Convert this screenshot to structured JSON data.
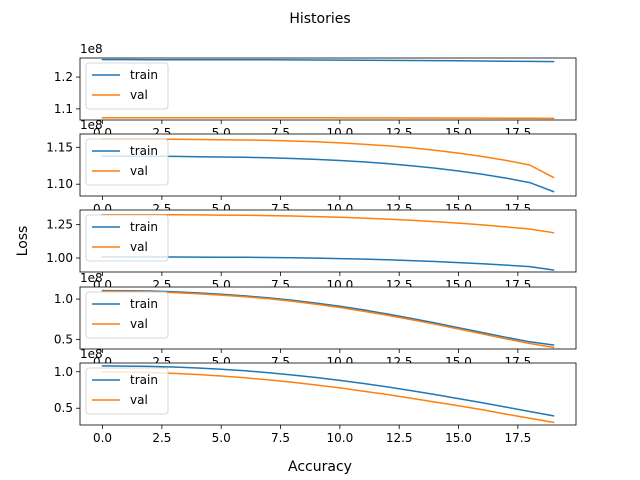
{
  "chart_data": {
    "type": "line",
    "title": "Histories",
    "xlabel": "Accuracy",
    "ylabel": "Loss",
    "colors": {
      "train": "#1f77b4",
      "val": "#ff7f0e"
    },
    "legend": [
      "train",
      "val"
    ],
    "legend_position": "upper left",
    "grid": false,
    "x": [
      0,
      1,
      2,
      3,
      4,
      5,
      6,
      7,
      8,
      9,
      10,
      11,
      12,
      13,
      14,
      15,
      16,
      17,
      18,
      19
    ],
    "x_ticks": [
      0,
      2.5,
      5,
      7.5,
      10,
      12.5,
      15,
      17.5
    ],
    "x_tick_labels": [
      "0.0",
      "2.5",
      "5.0",
      "7.5",
      "10.0",
      "12.5",
      "15.0",
      "17.5"
    ],
    "xlim": [
      -0.95,
      19.95
    ],
    "subplots": [
      {
        "offset_text": "1e8",
        "ylim": [
          1.065,
          1.26
        ],
        "yticks": [
          1.1,
          1.2
        ],
        "ytick_labels": [
          "1.1",
          "1.2"
        ],
        "series": [
          {
            "name": "train",
            "values": [
              1.255,
              1.2549,
              1.2548,
              1.2547,
              1.2546,
              1.2545,
              1.2544,
              1.2542,
              1.254,
              1.2537,
              1.2534,
              1.253,
              1.2526,
              1.2522,
              1.2517,
              1.2512,
              1.2506,
              1.25,
              1.2493,
              1.2486
            ]
          },
          {
            "name": "val",
            "values": [
              1.072,
              1.072,
              1.072,
              1.072,
              1.072,
              1.072,
              1.072,
              1.0719,
              1.0719,
              1.0718,
              1.0717,
              1.0716,
              1.0715,
              1.0714,
              1.0713,
              1.0711,
              1.0709,
              1.0707,
              1.0704,
              1.07
            ]
          }
        ]
      },
      {
        "offset_text": "1e8",
        "ylim": [
          1.084,
          1.168
        ],
        "yticks": [
          1.1,
          1.15
        ],
        "ytick_labels": [
          "1.10",
          "1.15"
        ],
        "series": [
          {
            "name": "train",
            "values": [
              1.138,
              1.1379,
              1.1378,
              1.1376,
              1.1373,
              1.1369,
              1.1364,
              1.1357,
              1.1348,
              1.1336,
              1.1321,
              1.1302,
              1.1279,
              1.1251,
              1.1218,
              1.1179,
              1.1134,
              1.1082,
              1.1022,
              1.09
            ]
          },
          {
            "name": "val",
            "values": [
              1.161,
              1.161,
              1.1609,
              1.1608,
              1.1606,
              1.1603,
              1.1599,
              1.1593,
              1.1585,
              1.1574,
              1.156,
              1.1542,
              1.152,
              1.1493,
              1.146,
              1.1421,
              1.1375,
              1.1322,
              1.126,
              1.109
            ]
          }
        ]
      },
      {
        "offset_text": "",
        "ylim": [
          0.895,
          1.36
        ],
        "yticks": [
          1.0,
          1.25
        ],
        "ytick_labels": [
          "1.00",
          "1.25"
        ],
        "series": [
          {
            "name": "train",
            "values": [
              1.008,
              1.0079,
              1.0077,
              1.0074,
              1.007,
              1.0063,
              1.0052,
              1.0037,
              1.0016,
              0.999,
              0.9956,
              0.9914,
              0.9863,
              0.9804,
              0.9735,
              0.9656,
              0.9567,
              0.9467,
              0.9356,
              0.91
            ]
          },
          {
            "name": "val",
            "values": [
              1.325,
              1.3249,
              1.3246,
              1.3241,
              1.3233,
              1.3221,
              1.3204,
              1.318,
              1.3149,
              1.3108,
              1.3057,
              1.2994,
              1.2919,
              1.2831,
              1.273,
              1.2614,
              1.2483,
              1.2336,
              1.2173,
              1.19
            ]
          }
        ]
      },
      {
        "offset_text": "1e8",
        "ylim": [
          0.38,
          1.15
        ],
        "yticks": [
          0.5,
          1.0
        ],
        "ytick_labels": [
          "0.5",
          "1.0"
        ],
        "series": [
          {
            "name": "train",
            "values": [
              1.105,
              1.104,
              1.1,
              1.09,
              1.077,
              1.06,
              1.04,
              1.015,
              0.985,
              0.95,
              0.91,
              0.865,
              0.815,
              0.76,
              0.705,
              0.645,
              0.585,
              0.525,
              0.47,
              0.43
            ]
          },
          {
            "name": "val",
            "values": [
              1.095,
              1.094,
              1.09,
              1.08,
              1.066,
              1.05,
              1.03,
              1.003,
              0.973,
              0.937,
              0.896,
              0.85,
              0.8,
              0.745,
              0.688,
              0.628,
              0.567,
              0.505,
              0.448,
              0.4
            ]
          }
        ]
      },
      {
        "offset_text": "1e8",
        "ylim": [
          0.27,
          1.12
        ],
        "yticks": [
          0.5,
          1.0
        ],
        "ytick_labels": [
          "0.5",
          "1.0"
        ],
        "series": [
          {
            "name": "train",
            "values": [
              1.08,
              1.078,
              1.073,
              1.065,
              1.052,
              1.035,
              1.013,
              0.987,
              0.956,
              0.921,
              0.882,
              0.839,
              0.792,
              0.742,
              0.688,
              0.632,
              0.574,
              0.515,
              0.455,
              0.395
            ]
          },
          {
            "name": "val",
            "values": [
              1.0,
              0.997,
              0.99,
              0.978,
              0.962,
              0.942,
              0.917,
              0.888,
              0.855,
              0.818,
              0.778,
              0.734,
              0.688,
              0.638,
              0.586,
              0.533,
              0.478,
              0.42,
              0.362,
              0.305
            ]
          }
        ]
      }
    ]
  }
}
